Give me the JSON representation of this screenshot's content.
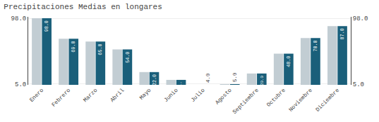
{
  "chart_data": {
    "type": "bar",
    "title": "Precipitaciones Medias en longares",
    "categories": [
      "Enero",
      "Febrero",
      "Marzo",
      "Abril",
      "Mayo",
      "Junio",
      "Julio",
      "Agosto",
      "Septiembre",
      "Octubre",
      "Noviembre",
      "Diciembre"
    ],
    "series": [
      {
        "color": "#c2cdd3",
        "values": [
          98.0,
          69.0,
          65.0,
          54.0,
          22.0,
          11.0,
          4.0,
          5.0,
          20.0,
          48.0,
          70.0,
          87.0
        ]
      },
      {
        "color": "#1a5f7a",
        "values": [
          98.0,
          69.0,
          65.0,
          54.0,
          22.0,
          11.0,
          4.0,
          5.0,
          20.0,
          48.0,
          70.0,
          87.0
        ],
        "value_labels": [
          "98.0",
          "69.0",
          "65.0",
          "54.0",
          "22.0",
          "11.0",
          "4.0",
          "5.0",
          "20.0",
          "48.0",
          "70.0",
          "87.0"
        ]
      }
    ],
    "data_labels": true,
    "ylim": [
      4,
      100
    ],
    "yticks": [
      {
        "value": 5,
        "label": "5.0"
      },
      {
        "value": 98,
        "label": "98.0"
      }
    ],
    "y2lim": [
      4,
      100
    ],
    "y2ticks": [
      {
        "value": 5,
        "label": "5.0"
      },
      {
        "value": 98,
        "label": "98.0"
      }
    ],
    "grid": true
  }
}
